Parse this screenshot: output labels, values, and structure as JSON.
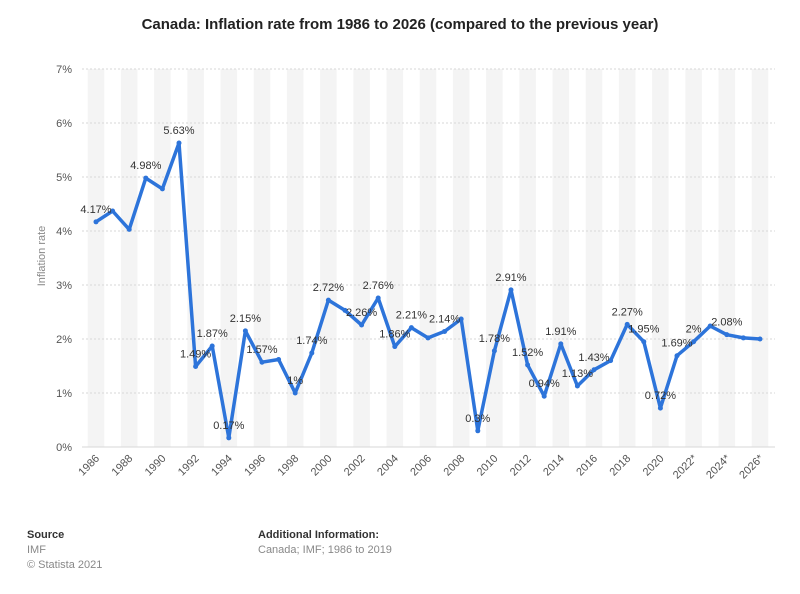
{
  "page": {
    "title": "Canada: Inflation rate from 1986 to 2026 (compared to the previous year)"
  },
  "footer": {
    "source_heading": "Source",
    "source_text": "IMF",
    "copyright": "© Statista 2021",
    "additional_heading": "Additional Information:",
    "additional_text": "Canada; IMF; 1986 to 2019"
  },
  "chart_data": {
    "type": "line",
    "title": "Canada: Inflation rate from 1986 to 2026 (compared to the previous year)",
    "xlabel": "",
    "ylabel": "Inflation rate",
    "ylim": [
      0,
      7
    ],
    "y_ticks": [
      "0%",
      "1%",
      "2%",
      "3%",
      "4%",
      "5%",
      "6%",
      "7%"
    ],
    "grid": true,
    "line_color": "#2d74da",
    "x": [
      1986,
      1987,
      1988,
      1989,
      1990,
      1991,
      1992,
      1993,
      1994,
      1995,
      1996,
      1997,
      1998,
      1999,
      2000,
      2001,
      2002,
      2003,
      2004,
      2005,
      2006,
      2007,
      2008,
      2009,
      2010,
      2011,
      2012,
      2013,
      2014,
      2015,
      2016,
      2017,
      2018,
      2019,
      2020,
      2021,
      2022,
      2023,
      2024,
      2025,
      2026
    ],
    "x_tick_labels": [
      {
        "x": 1986,
        "label": "1986"
      },
      {
        "x": 1988,
        "label": "1988"
      },
      {
        "x": 1990,
        "label": "1990"
      },
      {
        "x": 1992,
        "label": "1992"
      },
      {
        "x": 1994,
        "label": "1994"
      },
      {
        "x": 1996,
        "label": "1996"
      },
      {
        "x": 1998,
        "label": "1998"
      },
      {
        "x": 2000,
        "label": "2000"
      },
      {
        "x": 2002,
        "label": "2002"
      },
      {
        "x": 2004,
        "label": "2004"
      },
      {
        "x": 2006,
        "label": "2006"
      },
      {
        "x": 2008,
        "label": "2008"
      },
      {
        "x": 2010,
        "label": "2010"
      },
      {
        "x": 2012,
        "label": "2012"
      },
      {
        "x": 2014,
        "label": "2014"
      },
      {
        "x": 2016,
        "label": "2016"
      },
      {
        "x": 2018,
        "label": "2018"
      },
      {
        "x": 2020,
        "label": "2020"
      },
      {
        "x": 2022,
        "label": "2022*"
      },
      {
        "x": 2024,
        "label": "2024*"
      },
      {
        "x": 2026,
        "label": "2026*"
      }
    ],
    "values": [
      4.17,
      4.37,
      4.03,
      4.98,
      4.78,
      5.63,
      1.49,
      1.87,
      0.17,
      2.15,
      1.57,
      1.62,
      1.0,
      1.74,
      2.72,
      2.53,
      2.26,
      2.76,
      1.86,
      2.21,
      2.02,
      2.14,
      2.37,
      0.3,
      1.78,
      2.91,
      1.52,
      0.94,
      1.91,
      1.13,
      1.43,
      1.6,
      2.27,
      1.95,
      0.72,
      1.69,
      1.95,
      2.24,
      2.08,
      2.02,
      2.0
    ],
    "data_labels": [
      {
        "x": 1986,
        "text": "4.17%"
      },
      {
        "x": 1989,
        "text": "4.98%"
      },
      {
        "x": 1991,
        "text": "5.63%"
      },
      {
        "x": 1992,
        "text": "1.49%"
      },
      {
        "x": 1993,
        "text": "1.87%"
      },
      {
        "x": 1994,
        "text": "0.17%"
      },
      {
        "x": 1995,
        "text": "2.15%"
      },
      {
        "x": 1996,
        "text": "1.57%"
      },
      {
        "x": 1998,
        "text": "1%"
      },
      {
        "x": 1999,
        "text": "1.74%"
      },
      {
        "x": 2000,
        "text": "2.72%"
      },
      {
        "x": 2002,
        "text": "2.26%"
      },
      {
        "x": 2003,
        "text": "2.76%"
      },
      {
        "x": 2004,
        "text": "1.86%"
      },
      {
        "x": 2005,
        "text": "2.21%"
      },
      {
        "x": 2007,
        "text": "2.14%"
      },
      {
        "x": 2009,
        "text": "0.3%"
      },
      {
        "x": 2010,
        "text": "1.78%"
      },
      {
        "x": 2011,
        "text": "2.91%"
      },
      {
        "x": 2012,
        "text": "1.52%"
      },
      {
        "x": 2013,
        "text": "0.94%"
      },
      {
        "x": 2014,
        "text": "1.91%"
      },
      {
        "x": 2015,
        "text": "1.13%"
      },
      {
        "x": 2016,
        "text": "1.43%"
      },
      {
        "x": 2018,
        "text": "2.27%"
      },
      {
        "x": 2019,
        "text": "1.95%"
      },
      {
        "x": 2020,
        "text": "0.72%"
      },
      {
        "x": 2021,
        "text": "1.69%"
      },
      {
        "x": 2022,
        "text": "2%"
      },
      {
        "x": 2024,
        "text": "2.08%"
      }
    ]
  }
}
